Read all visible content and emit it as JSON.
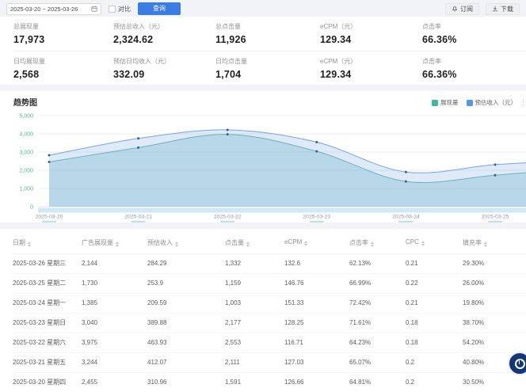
{
  "toolbar": {
    "date_range": "2025-03-20 ~ 2025-03-26",
    "compare_label": "对比",
    "query_label": "查询",
    "subscribe_label": "订阅",
    "download_label": "下载"
  },
  "colors": {
    "primary_button": "#3b7ce2",
    "impressions_series": "#3eb8a0",
    "revenue_series": "#5596e6",
    "axis_label_teal": "#56b3a4"
  },
  "stats": {
    "rows": [
      [
        {
          "label": "总展现量",
          "value": "17,973"
        },
        {
          "label": "预估总收入（元）",
          "value": "2,324.62"
        },
        {
          "label": "总点击量",
          "value": "11,926"
        },
        {
          "label": "eCPM（元）",
          "value": "129.34"
        },
        {
          "label": "点击率",
          "value": "66.36%"
        }
      ],
      [
        {
          "label": "日均展现量",
          "value": "2,568"
        },
        {
          "label": "预估日均收入（元）",
          "value": "332.09"
        },
        {
          "label": "日均点击量",
          "value": "1,704"
        },
        {
          "label": "eCPM（元）",
          "value": "129.34"
        },
        {
          "label": "点击率",
          "value": "66.36%"
        }
      ]
    ]
  },
  "chart": {
    "title": "趋势图",
    "legend": [
      {
        "label": "展现量",
        "color": "#3eb8a0"
      },
      {
        "label": "预估收入（元）",
        "color": "#5596e6"
      }
    ]
  },
  "chart_data": {
    "type": "area",
    "title": "趋势图",
    "smooth": true,
    "grid": true,
    "legend_position": "top-right",
    "x": [
      "2025-03-20",
      "2025-03-21",
      "2025-03-22",
      "2025-03-23",
      "2025-03-24",
      "2025-03-25",
      "2025-03-26"
    ],
    "visible_x_ticks": [
      "2025-03-20",
      "2025-03-21",
      "2025-03-22",
      "2025-03-23",
      "2025-03-24",
      "2025-03-25"
    ],
    "series": [
      {
        "name": "展现量",
        "axis": "left",
        "color": "#3eb8a0",
        "values": [
          2455,
          3244,
          3975,
          3040,
          1385,
          1730,
          2144
        ]
      },
      {
        "name": "预估收入（元）",
        "axis": "right",
        "color": "#5596e6",
        "values": [
          310.96,
          412.07,
          463.93,
          389.88,
          209.59,
          253.9,
          284.29
        ]
      }
    ],
    "left_axis": {
      "min": 0,
      "max": 5000,
      "tick_step": 1000,
      "tick_labels": [
        "0",
        "1,000",
        "2,000",
        "3,000",
        "4,000",
        "5,000"
      ]
    },
    "right_axis": {
      "min": 0,
      "max": 550
    }
  },
  "table": {
    "columns": [
      "日期",
      "广告展现量",
      "预估收入",
      "点击量",
      "eCPM",
      "点击率",
      "CPC",
      "填充率"
    ],
    "rows": [
      [
        "2025-03-26 星期三",
        "2,144",
        "284.29",
        "1,332",
        "132.6",
        "62.13%",
        "0.21",
        "29.30%"
      ],
      [
        "2025-03-25 星期二",
        "1,730",
        "253.9",
        "1,159",
        "146.76",
        "66.99%",
        "0.22",
        "26.00%"
      ],
      [
        "2025-03-24 星期一",
        "1,385",
        "209.59",
        "1,003",
        "151.33",
        "72.42%",
        "0.21",
        "19.80%"
      ],
      [
        "2025-03-23 星期日",
        "3,040",
        "389.88",
        "2,177",
        "128.25",
        "71.61%",
        "0.18",
        "38.70%"
      ],
      [
        "2025-03-22 星期六",
        "3,975",
        "463.93",
        "2,553",
        "116.71",
        "64.23%",
        "0.18",
        "54.20%"
      ],
      [
        "2025-03-21 星期五",
        "3,244",
        "412.07",
        "2,111",
        "127.03",
        "65.07%",
        "0.2",
        "40.80%"
      ],
      [
        "2025-03-20 星期四",
        "2,455",
        "310.96",
        "1,591",
        "126.66",
        "64.81%",
        "0.2",
        "30.50%"
      ]
    ]
  }
}
